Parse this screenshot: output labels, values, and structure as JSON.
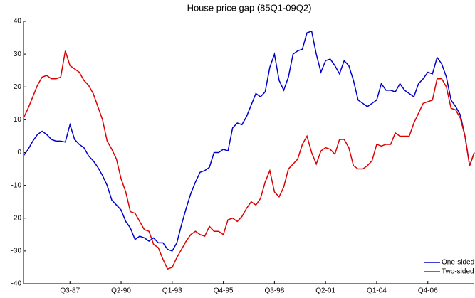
{
  "chart_data": {
    "type": "line",
    "title": "House price gap (85Q1-09Q2)",
    "categories": [
      null,
      null,
      null,
      null,
      null,
      null,
      null,
      null,
      null,
      null,
      "Q3-87",
      null,
      null,
      null,
      null,
      null,
      null,
      null,
      null,
      null,
      null,
      "Q2-90",
      null,
      null,
      null,
      null,
      null,
      null,
      null,
      null,
      null,
      null,
      "Q1-93",
      null,
      null,
      null,
      null,
      null,
      null,
      null,
      null,
      null,
      null,
      "Q4-95",
      null,
      null,
      null,
      null,
      null,
      null,
      null,
      null,
      null,
      null,
      "Q3-98",
      null,
      null,
      null,
      null,
      null,
      null,
      null,
      null,
      null,
      null,
      "Q2-01",
      null,
      null,
      null,
      null,
      null,
      null,
      null,
      null,
      null,
      null,
      "Q1-04",
      null,
      null,
      null,
      null,
      null,
      null,
      null,
      null,
      null,
      null,
      "Q4-06",
      null,
      null,
      null,
      null,
      null,
      null,
      null,
      null,
      null,
      null
    ],
    "series": [
      {
        "name": "One-sided HP",
        "color": "#0000cc",
        "values": [
          -1,
          1,
          3.5,
          5.5,
          6.5,
          5.5,
          4,
          3.5,
          3.5,
          3.2,
          8.5,
          4,
          2.5,
          1.5,
          -1,
          -2.5,
          -4.5,
          -7,
          -10,
          -14.5,
          -16,
          -17.5,
          -21,
          -23,
          -26.5,
          -25.5,
          -26,
          -27,
          -26,
          -27.5,
          -27.5,
          -29.5,
          -30,
          -27.5,
          -22,
          -17,
          -12.5,
          -9,
          -6,
          -5.5,
          -4.5,
          0,
          0,
          1,
          0.5,
          7.5,
          9,
          8.5,
          11,
          14.5,
          18,
          17,
          18.5,
          26,
          30,
          22,
          19,
          23,
          30,
          31,
          31.5,
          36.5,
          37,
          30,
          24.5,
          28,
          28.5,
          26.5,
          24,
          28,
          26.5,
          22,
          16,
          15,
          14,
          15,
          16,
          21,
          19,
          19,
          18.5,
          21,
          19,
          18,
          17,
          21,
          22.5,
          24.5,
          24,
          29,
          27,
          23,
          16,
          14,
          11.5,
          5,
          -4,
          0
        ]
      },
      {
        "name": "Two-sided HP",
        "color": "#dd0000",
        "values": [
          10.5,
          13.5,
          17,
          20.5,
          23,
          23.5,
          22.5,
          22.5,
          23,
          31,
          26.5,
          25.5,
          24.5,
          22,
          20.5,
          18,
          14,
          10,
          3.5,
          1,
          -2,
          -8,
          -12,
          -18,
          -18.5,
          -21,
          -23.5,
          -24,
          -28,
          -29,
          -32.5,
          -35.5,
          -35,
          -32,
          -29.5,
          -27,
          -25,
          -24,
          -25,
          -25.5,
          -22.5,
          -24,
          -24,
          -25,
          -20.5,
          -20,
          -21,
          -19.5,
          -17,
          -15,
          -16,
          -14,
          -9,
          -5.5,
          -12,
          -13.5,
          -10.5,
          -5,
          -3.5,
          -2,
          2.5,
          5,
          0,
          -3.5,
          0.5,
          1.5,
          1,
          -0.5,
          4,
          4,
          1.5,
          -4,
          -5,
          -5,
          -4,
          -2.5,
          2.5,
          2,
          2.5,
          2.5,
          6,
          5,
          5,
          5,
          9,
          12,
          15,
          15.5,
          16,
          22.5,
          22.5,
          20,
          13.5,
          13,
          10.5,
          5,
          -4,
          0
        ]
      }
    ],
    "ylim": [
      -40,
      40
    ],
    "yticks": [
      -40,
      -30,
      -20,
      -10,
      0,
      10,
      20,
      30,
      40
    ],
    "grid": false,
    "legend": "bottom-right"
  }
}
